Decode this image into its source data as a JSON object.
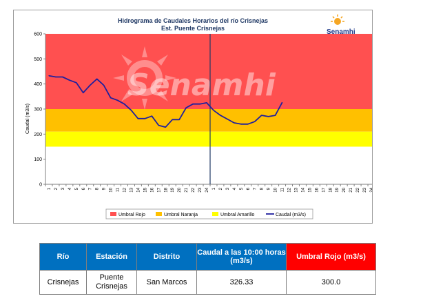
{
  "chart_data": {
    "type": "line",
    "title": "Hidrograma de Caudales Horarios del río Crisnejas",
    "subtitle": "Est. Puente Crisnejas",
    "ylabel": "Caudal  (m3/s)",
    "xlabel": "",
    "ylim": [
      0,
      600
    ],
    "yticks": [
      0,
      100,
      200,
      300,
      400,
      500,
      600
    ],
    "x_tick_labels": [
      "1",
      "2",
      "3",
      "4",
      "5",
      "6",
      "7",
      "8",
      "9",
      "10",
      "11",
      "12",
      "13",
      "14",
      "15",
      "16",
      "17",
      "18",
      "19",
      "20",
      "21",
      "22",
      "23",
      "24",
      "1",
      "2",
      "3",
      "4",
      "5",
      "6",
      "7",
      "8",
      "9",
      "10",
      "11",
      "12",
      "13",
      "14",
      "15",
      "16",
      "17",
      "18",
      "19",
      "20",
      "21",
      "22",
      "23",
      "24"
    ],
    "bands": [
      {
        "name": "Umbral Rojo",
        "from": 300,
        "to": 600,
        "color": "#ff5050"
      },
      {
        "name": "Umbral Naranja",
        "from": 210,
        "to": 300,
        "color": "#ffc000"
      },
      {
        "name": "Umbral Amarillo",
        "from": 150,
        "to": 210,
        "color": "#ffff00"
      }
    ],
    "series": [
      {
        "name": "Caudal (m3/s)",
        "color": "#1f1f9e",
        "values": [
          433,
          428,
          428,
          415,
          405,
          365,
          395,
          420,
          395,
          345,
          335,
          320,
          295,
          262,
          262,
          272,
          235,
          228,
          258,
          258,
          305,
          320,
          320,
          325,
          295,
          275,
          260,
          245,
          240,
          240,
          250,
          275,
          270,
          275,
          326.33
        ]
      }
    ],
    "day_divider_after_index": 24,
    "grid": false,
    "legend_position": "bottom"
  },
  "legend": {
    "items": [
      {
        "label": "Umbral Rojo",
        "color": "#ff5050",
        "kind": "box"
      },
      {
        "label": "Umbral Naranja",
        "color": "#ffc000",
        "kind": "box"
      },
      {
        "label": "Umbral Amarillo",
        "color": "#ffff00",
        "kind": "box"
      },
      {
        "label": "Caudal (m3/s)",
        "color": "#1f1f9e",
        "kind": "line"
      }
    ]
  },
  "watermark": "Senamhi",
  "logo": {
    "text": "Senamhi",
    "color": "#1f3a8a",
    "sun_color": "#f5a623"
  },
  "table": {
    "headers": [
      "Río",
      "Estación",
      "Distrito",
      "Caudal a las 10:00 horas (m3/s)",
      "Umbral Rojo (m3/s)"
    ],
    "row": [
      "Crisnejas",
      "Puente Crisnejas",
      "San Marcos",
      "326.33",
      "300.0"
    ],
    "header_color": "#0070c0",
    "alert_header_color": "#ff0000"
  }
}
